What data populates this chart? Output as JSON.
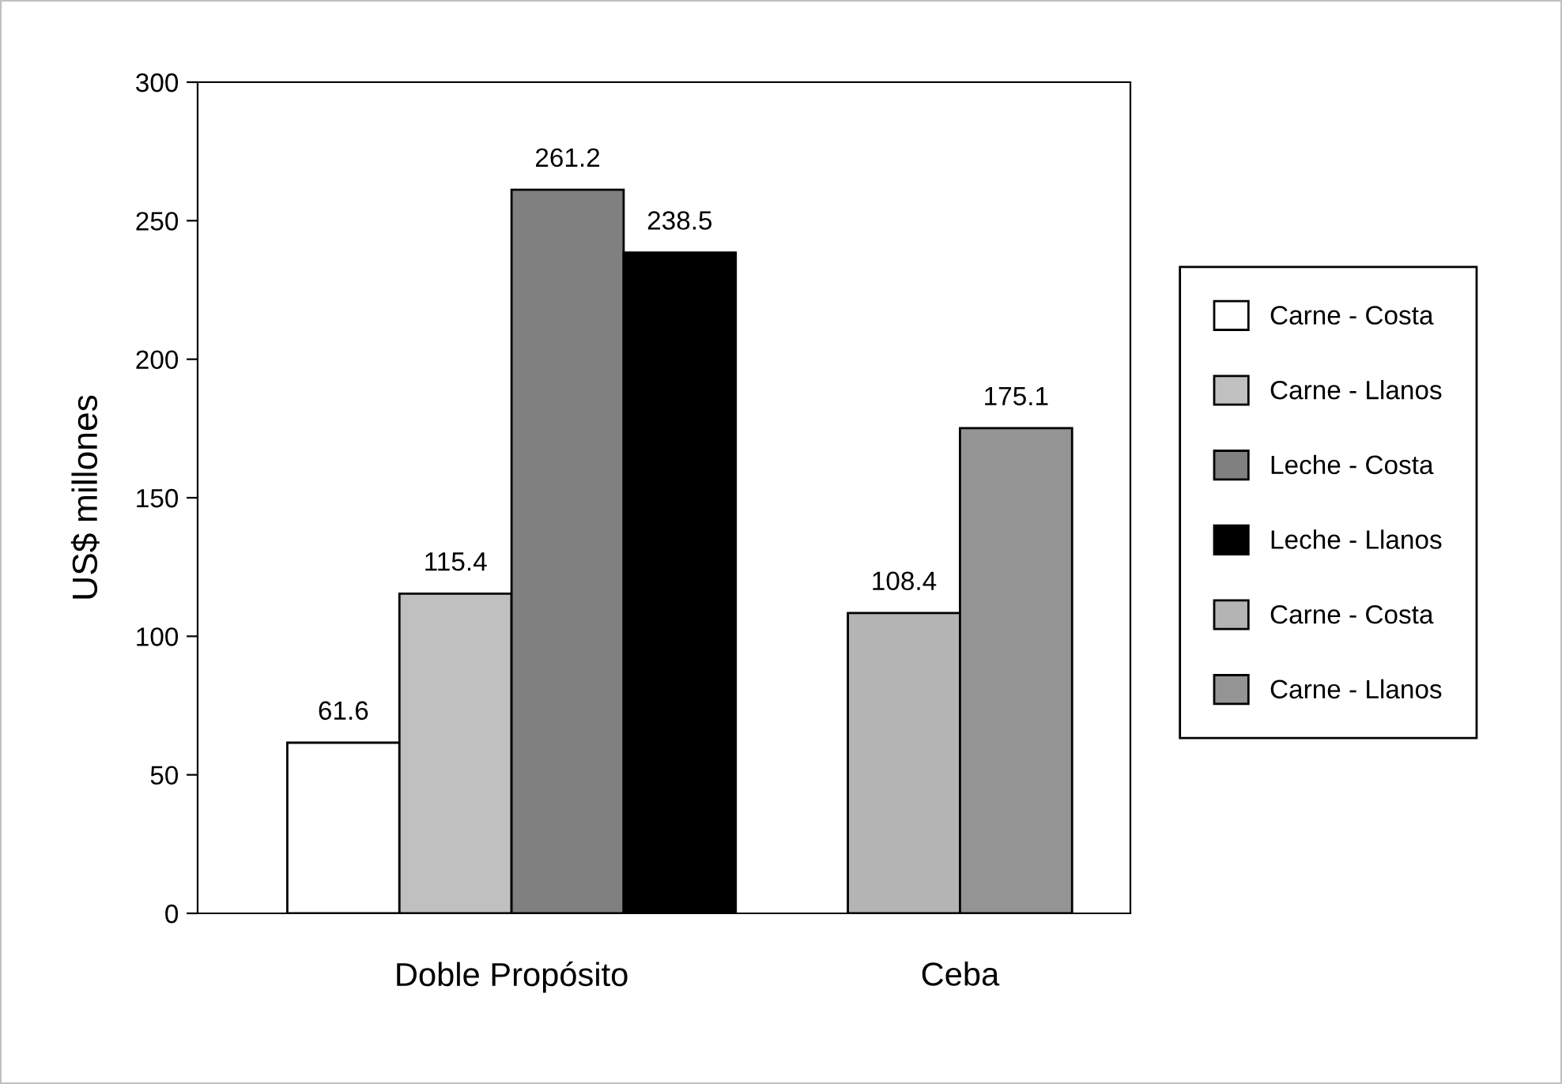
{
  "chart_data": {
    "type": "bar",
    "ylabel": "US$ millones",
    "categories": [
      "Doble Propósito",
      "Ceba"
    ],
    "series": [
      {
        "name": "Carne - Costa",
        "color": "#ffffff",
        "values": [
          61.6,
          null
        ]
      },
      {
        "name": "Carne - Llanos",
        "color": "#c0c0c0",
        "values": [
          115.4,
          null
        ]
      },
      {
        "name": "Leche - Costa",
        "color": "#808080",
        "values": [
          261.2,
          null
        ]
      },
      {
        "name": "Leche - Llanos",
        "color": "#000000",
        "values": [
          238.5,
          null
        ]
      },
      {
        "name": "Carne - Costa",
        "color": "#b4b4b4",
        "values": [
          null,
          108.4
        ]
      },
      {
        "name": "Carne - Llanos",
        "color": "#949494",
        "values": [
          null,
          175.1
        ]
      }
    ],
    "ylim": [
      0,
      300
    ],
    "yticks": [
      0,
      50,
      100,
      150,
      200,
      250,
      300
    ],
    "data_labels": true,
    "grid": false,
    "legend": "right"
  }
}
